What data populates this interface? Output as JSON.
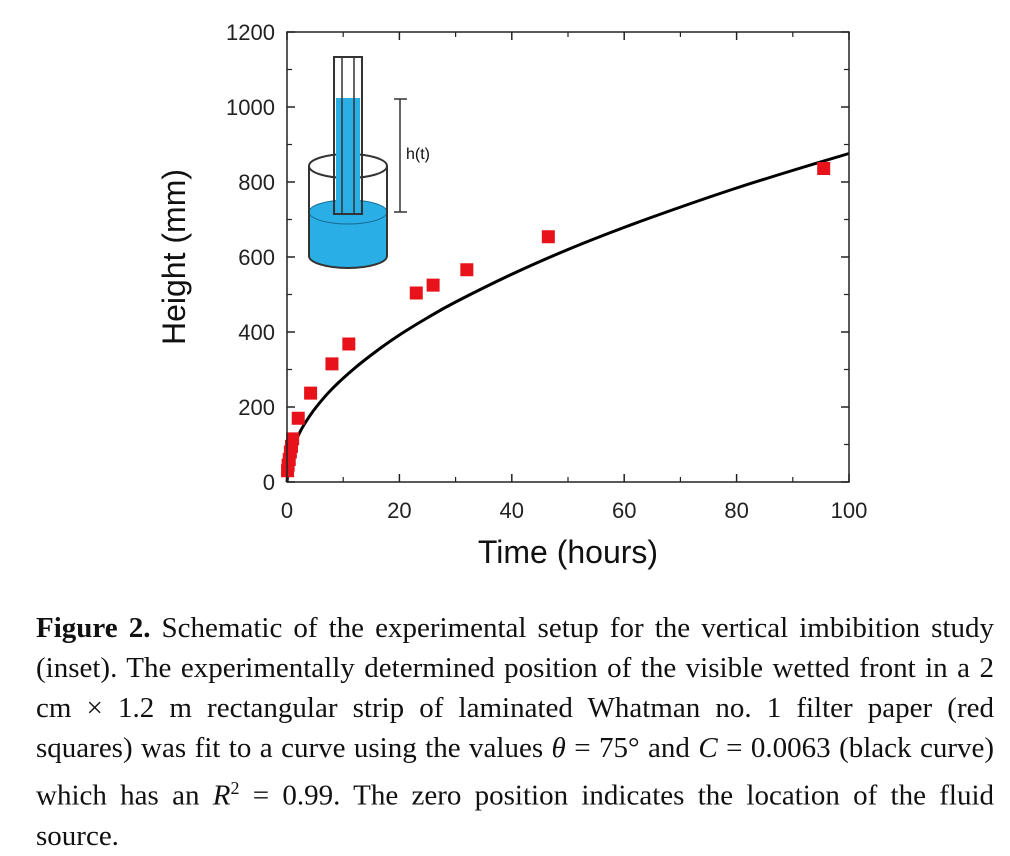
{
  "chart_data": {
    "type": "scatter",
    "xlabel": "Time (hours)",
    "ylabel": "Height (mm)",
    "xlim": [
      0,
      100
    ],
    "ylim": [
      0,
      1200
    ],
    "x_ticks": [
      "0",
      "20",
      "40",
      "60",
      "80",
      "100"
    ],
    "y_ticks": [
      "0",
      "200",
      "400",
      "600",
      "800",
      "1000",
      "1200"
    ],
    "grid": false,
    "series": [
      {
        "kind": "points",
        "marker": "square",
        "color": "#e8131a",
        "points": [
          {
            "x": 0.1,
            "y": 30
          },
          {
            "x": 0.2,
            "y": 45
          },
          {
            "x": 0.4,
            "y": 60
          },
          {
            "x": 0.6,
            "y": 80
          },
          {
            "x": 0.8,
            "y": 95
          },
          {
            "x": 1.0,
            "y": 115
          },
          {
            "x": 2,
            "y": 170
          },
          {
            "x": 4.2,
            "y": 237
          },
          {
            "x": 8,
            "y": 315
          },
          {
            "x": 11,
            "y": 368
          },
          {
            "x": 23,
            "y": 504
          },
          {
            "x": 26,
            "y": 525
          },
          {
            "x": 32,
            "y": 566
          },
          {
            "x": 46.5,
            "y": 654
          },
          {
            "x": 95.5,
            "y": 836
          }
        ]
      },
      {
        "kind": "curve",
        "color": "#000000",
        "points": [
          {
            "x": 0,
            "y": 0
          },
          {
            "x": 0.25,
            "y": 44
          },
          {
            "x": 0.5,
            "y": 62
          },
          {
            "x": 1,
            "y": 88
          },
          {
            "x": 2,
            "y": 124
          },
          {
            "x": 3,
            "y": 152
          },
          {
            "x": 5,
            "y": 196
          },
          {
            "x": 8,
            "y": 248
          },
          {
            "x": 12,
            "y": 303
          },
          {
            "x": 16,
            "y": 350
          },
          {
            "x": 20,
            "y": 392
          },
          {
            "x": 25,
            "y": 438
          },
          {
            "x": 30,
            "y": 480
          },
          {
            "x": 40,
            "y": 554
          },
          {
            "x": 50,
            "y": 620
          },
          {
            "x": 60,
            "y": 679
          },
          {
            "x": 70,
            "y": 733
          },
          {
            "x": 80,
            "y": 784
          },
          {
            "x": 90,
            "y": 831
          },
          {
            "x": 100,
            "y": 876
          }
        ]
      }
    ]
  },
  "inset": {
    "label": "h(t)",
    "fluid_color": "#29aee6"
  },
  "caption": {
    "label": "Figure 2.",
    "text_1": " Schematic of the experimental setup for the vertical imbibition study (inset). The experimentally determined position of the visible wetted front in a 2 cm × 1.2 m rectangular strip of laminated Whatman no. 1 filter paper (red squares) was fit to a curve using the values ",
    "theta_symbol": "θ",
    "text_2": " = 75° and ",
    "c_symbol": "C",
    "text_3": " = 0.0063 (black curve) which has an ",
    "r_symbol": "R",
    "r_exponent": "2",
    "text_4": " = 0.99. The zero position indicates the location of the fluid source."
  }
}
